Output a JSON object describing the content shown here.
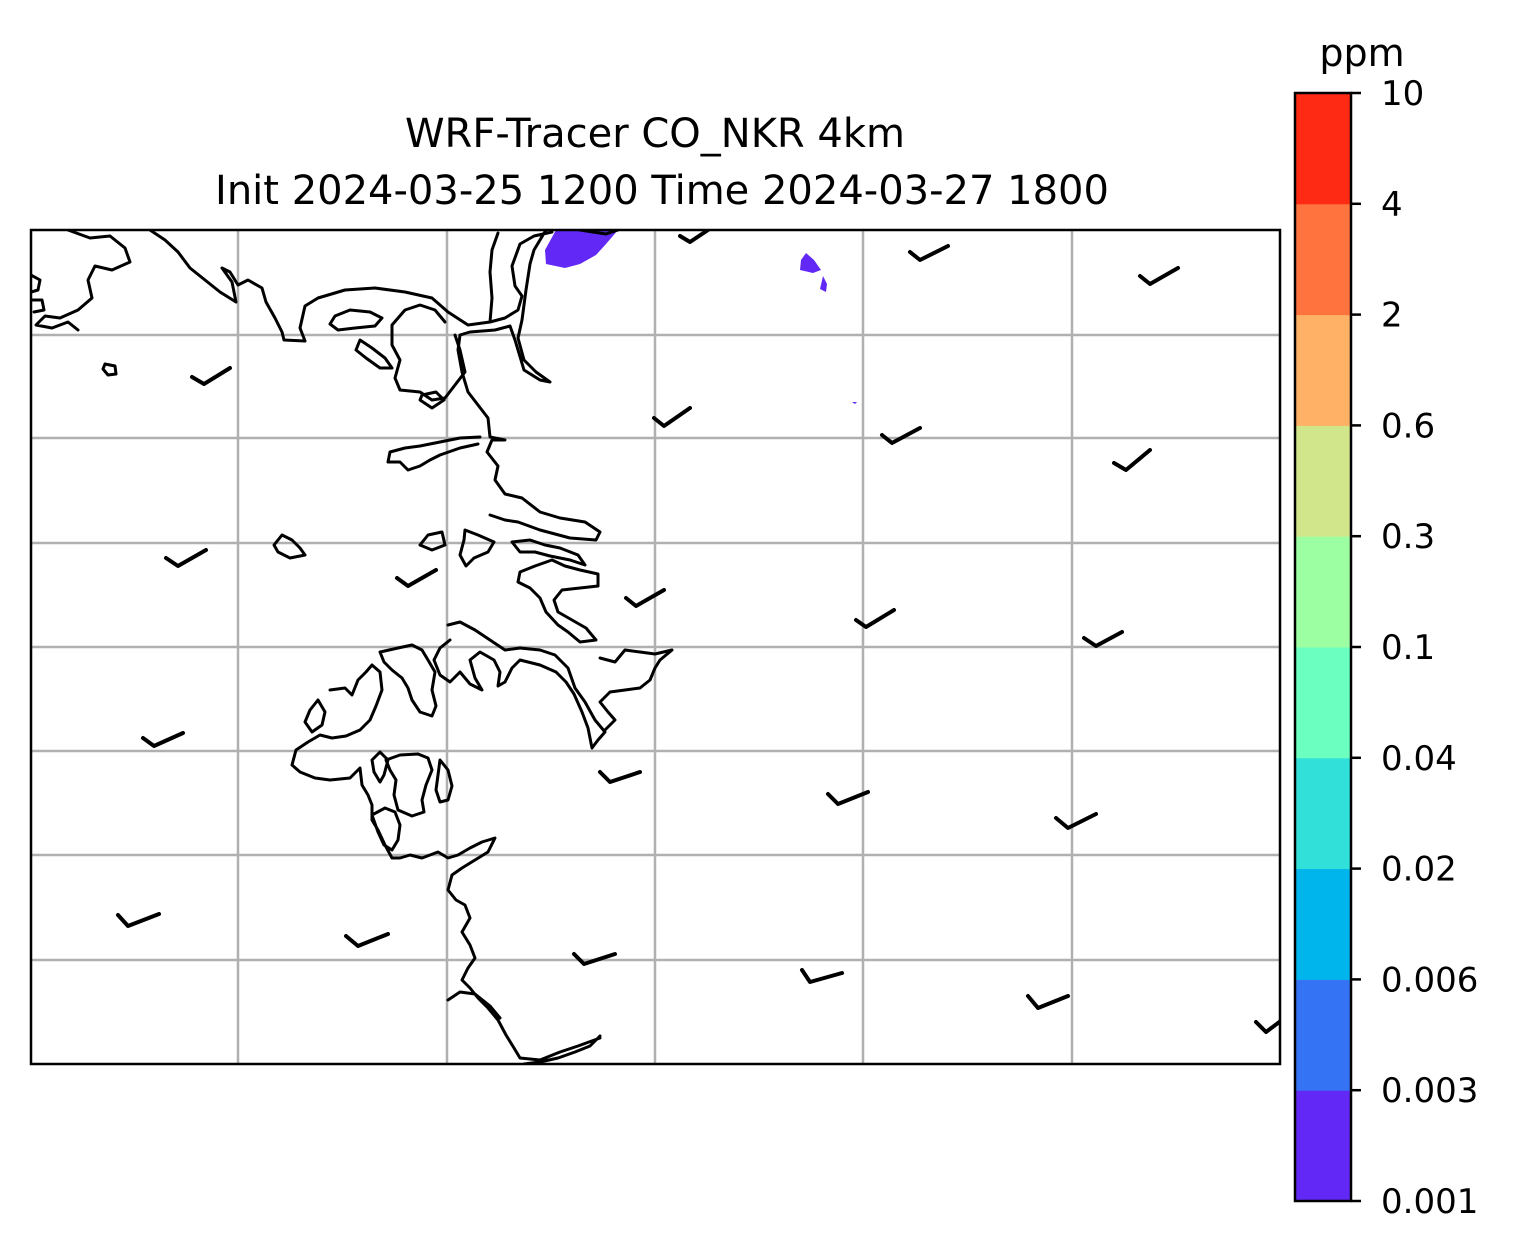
{
  "title": {
    "line1": "WRF-Tracer CO_NKR 4km",
    "line2": "Init 2024-03-25 1200 Time 2024-03-27 1800"
  },
  "colorbar": {
    "unit": "ppm",
    "levels": [
      "0.001",
      "0.003",
      "0.006",
      "0.02",
      "0.04",
      "0.1",
      "0.3",
      "0.6",
      "2",
      "4",
      "10"
    ],
    "colors": [
      "#6229f6",
      "#3474f4",
      "#00b4ec",
      "#31e0d8",
      "#6bffc0",
      "#9cffa2",
      "#d1e58a",
      "#ffb165",
      "#ff733f",
      "#ff2a14"
    ]
  },
  "map": {
    "gridlines": true,
    "tracer_color": "#6229f6"
  }
}
